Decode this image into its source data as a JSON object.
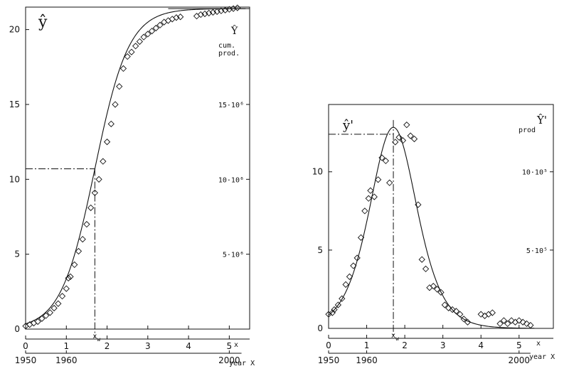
{
  "chart_data": [
    {
      "type": "scatter",
      "panel": "left",
      "ylabel": "ŷ",
      "ylabel_right": "Ŷ",
      "right_caption": [
        "cum.",
        "prod."
      ],
      "x_axis_label": "x",
      "year_axis_label": "year X",
      "xlim": [
        0,
        5.5
      ],
      "ylim": [
        0,
        21.5
      ],
      "x_ticks": [
        0,
        1,
        2,
        3,
        4,
        5
      ],
      "y_ticks": [
        0,
        5,
        10,
        15,
        20
      ],
      "right_ticks": [
        {
          "y": 5,
          "label": "5·10⁶"
        },
        {
          "y": 10,
          "label": "10·10⁶"
        },
        {
          "y": 15,
          "label": "15·10⁶"
        }
      ],
      "year_ticks": [
        {
          "x": 0,
          "label": "1950"
        },
        {
          "x": 1,
          "label": "1960"
        },
        {
          "x": 5,
          "label": "2000"
        }
      ],
      "xw_label": "x",
      "xw_sub": "w",
      "xw": 1.7,
      "yw": 10.7,
      "asymptote": 21.4,
      "model": {
        "K": 21.4,
        "k": 2.4,
        "x0": 1.7
      },
      "points": [
        [
          0.0,
          0.2
        ],
        [
          0.1,
          0.3
        ],
        [
          0.2,
          0.4
        ],
        [
          0.3,
          0.5
        ],
        [
          0.4,
          0.7
        ],
        [
          0.5,
          0.9
        ],
        [
          0.6,
          1.1
        ],
        [
          0.7,
          1.4
        ],
        [
          0.8,
          1.7
        ],
        [
          0.9,
          2.2
        ],
        [
          1.0,
          2.7
        ],
        [
          1.05,
          3.4
        ],
        [
          1.1,
          3.5
        ],
        [
          1.2,
          4.3
        ],
        [
          1.3,
          5.2
        ],
        [
          1.4,
          6.0
        ],
        [
          1.5,
          7.0
        ],
        [
          1.6,
          8.1
        ],
        [
          1.7,
          9.1
        ],
        [
          1.8,
          10.0
        ],
        [
          1.9,
          11.2
        ],
        [
          2.0,
          12.5
        ],
        [
          2.1,
          13.7
        ],
        [
          2.2,
          15.0
        ],
        [
          2.3,
          16.2
        ],
        [
          2.4,
          17.4
        ],
        [
          2.5,
          18.2
        ],
        [
          2.6,
          18.5
        ],
        [
          2.7,
          18.9
        ],
        [
          2.8,
          19.2
        ],
        [
          2.9,
          19.5
        ],
        [
          3.0,
          19.7
        ],
        [
          3.1,
          19.9
        ],
        [
          3.2,
          20.1
        ],
        [
          3.3,
          20.3
        ],
        [
          3.4,
          20.5
        ],
        [
          3.5,
          20.6
        ],
        [
          3.6,
          20.7
        ],
        [
          3.7,
          20.8
        ],
        [
          3.8,
          20.85
        ],
        [
          4.2,
          20.9
        ],
        [
          4.3,
          21.0
        ],
        [
          4.4,
          21.05
        ],
        [
          4.5,
          21.1
        ],
        [
          4.6,
          21.15
        ],
        [
          4.7,
          21.2
        ],
        [
          4.8,
          21.25
        ],
        [
          4.9,
          21.3
        ],
        [
          5.0,
          21.35
        ],
        [
          5.1,
          21.4
        ],
        [
          5.2,
          21.45
        ]
      ]
    },
    {
      "type": "scatter",
      "panel": "right",
      "ylabel": "ŷ'",
      "ylabel_right": "Ŷ'",
      "right_caption": [
        "prod"
      ],
      "x_axis_label": "x",
      "year_axis_label": "year X",
      "xlim": [
        0,
        5.9
      ],
      "ylim": [
        0,
        14.3
      ],
      "x_ticks": [
        0,
        1,
        2,
        3,
        4,
        5
      ],
      "y_ticks": [
        0,
        5,
        10
      ],
      "right_ticks": [
        {
          "y": 5,
          "label": "5·10⁵"
        },
        {
          "y": 10,
          "label": "10·10⁵"
        }
      ],
      "year_ticks": [
        {
          "x": 0,
          "label": "1950"
        },
        {
          "x": 1,
          "label": "1960"
        },
        {
          "x": 5,
          "label": "2000"
        }
      ],
      "xw_label": "x",
      "xw_sub": "w",
      "xw": 1.7,
      "ymax": 12.4,
      "model": {
        "K": 21.4,
        "k": 2.4,
        "x0": 1.7
      },
      "points": [
        [
          0.0,
          0.9
        ],
        [
          0.1,
          1.0
        ],
        [
          0.15,
          1.2
        ],
        [
          0.25,
          1.5
        ],
        [
          0.35,
          1.9
        ],
        [
          0.45,
          2.8
        ],
        [
          0.55,
          3.3
        ],
        [
          0.65,
          4.0
        ],
        [
          0.75,
          4.5
        ],
        [
          0.85,
          5.8
        ],
        [
          0.95,
          7.5
        ],
        [
          1.05,
          8.3
        ],
        [
          1.1,
          8.8
        ],
        [
          1.2,
          8.4
        ],
        [
          1.3,
          9.5
        ],
        [
          1.4,
          10.9
        ],
        [
          1.5,
          10.7
        ],
        [
          1.6,
          9.3
        ],
        [
          1.75,
          11.9
        ],
        [
          1.85,
          12.2
        ],
        [
          1.95,
          12.0
        ],
        [
          2.05,
          13.0
        ],
        [
          2.15,
          12.3
        ],
        [
          2.25,
          12.1
        ],
        [
          2.35,
          7.9
        ],
        [
          2.45,
          4.4
        ],
        [
          2.55,
          3.8
        ],
        [
          2.65,
          2.6
        ],
        [
          2.75,
          2.7
        ],
        [
          2.85,
          2.5
        ],
        [
          2.95,
          2.3
        ],
        [
          3.05,
          1.5
        ],
        [
          3.15,
          1.3
        ],
        [
          3.25,
          1.2
        ],
        [
          3.35,
          1.1
        ],
        [
          3.45,
          0.9
        ],
        [
          3.55,
          0.6
        ],
        [
          3.65,
          0.4
        ],
        [
          4.0,
          0.9
        ],
        [
          4.1,
          0.8
        ],
        [
          4.2,
          0.9
        ],
        [
          4.3,
          1.0
        ],
        [
          4.5,
          0.3
        ],
        [
          4.6,
          0.5
        ],
        [
          4.7,
          0.3
        ],
        [
          4.8,
          0.5
        ],
        [
          4.9,
          0.4
        ],
        [
          5.0,
          0.5
        ],
        [
          5.1,
          0.4
        ],
        [
          5.2,
          0.3
        ],
        [
          5.3,
          0.2
        ]
      ]
    }
  ]
}
